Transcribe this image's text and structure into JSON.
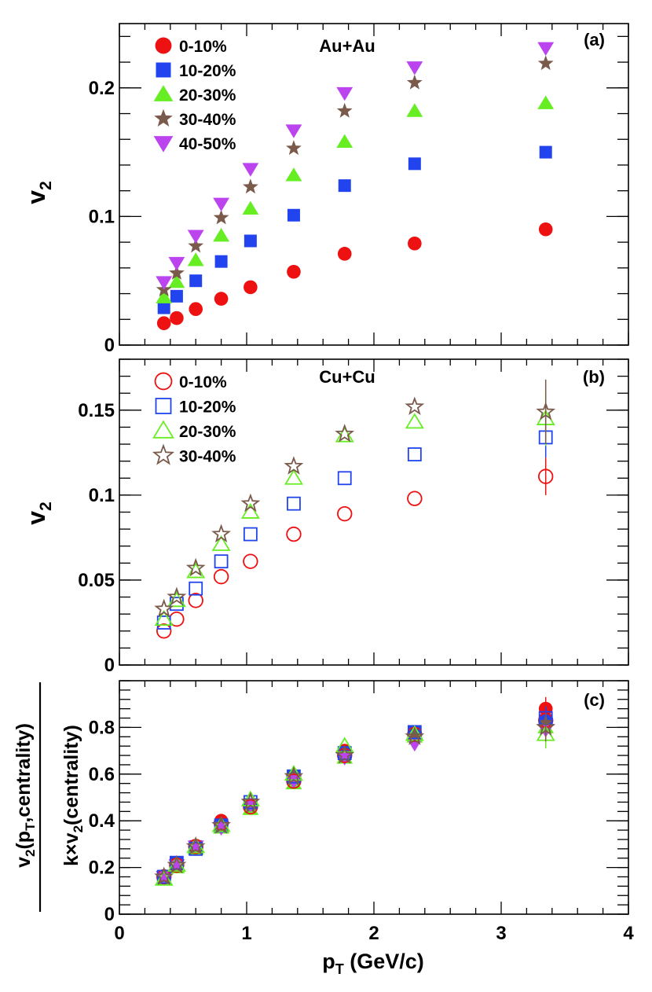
{
  "chart_data": [
    {
      "type": "scatter",
      "panel_tag": "(a)",
      "system": "Au+Au",
      "ylabel": "v2",
      "ylim": [
        0,
        0.25
      ],
      "yticks": [
        0,
        0.1,
        0.2
      ],
      "yticklabels": [
        "0",
        "0.1",
        "0.2"
      ],
      "xlim": [
        0,
        4
      ],
      "legend_position": "top-left",
      "series": [
        {
          "name": "0-10%",
          "marker": "circle",
          "filled": true,
          "color": "#ee1111",
          "x": [
            0.35,
            0.45,
            0.6,
            0.8,
            1.03,
            1.37,
            1.77,
            2.32,
            3.35
          ],
          "y": [
            0.017,
            0.021,
            0.028,
            0.036,
            0.045,
            0.057,
            0.071,
            0.079,
            0.09
          ]
        },
        {
          "name": "10-20%",
          "marker": "square",
          "filled": true,
          "color": "#2244ee",
          "x": [
            0.35,
            0.45,
            0.6,
            0.8,
            1.03,
            1.37,
            1.77,
            2.32,
            3.35
          ],
          "y": [
            0.029,
            0.038,
            0.05,
            0.065,
            0.081,
            0.101,
            0.124,
            0.141,
            0.15
          ]
        },
        {
          "name": "20-30%",
          "marker": "triangle-up",
          "filled": true,
          "color": "#66ee22",
          "x": [
            0.35,
            0.45,
            0.6,
            0.8,
            1.03,
            1.37,
            1.77,
            2.32,
            3.35
          ],
          "y": [
            0.037,
            0.049,
            0.066,
            0.085,
            0.106,
            0.132,
            0.158,
            0.182,
            0.188
          ]
        },
        {
          "name": "30-40%",
          "marker": "star",
          "filled": true,
          "color": "#7a5a4a",
          "x": [
            0.35,
            0.45,
            0.6,
            0.8,
            1.03,
            1.37,
            1.77,
            2.32,
            3.35
          ],
          "y": [
            0.043,
            0.056,
            0.077,
            0.099,
            0.123,
            0.153,
            0.182,
            0.204,
            0.219
          ]
        },
        {
          "name": "40-50%",
          "marker": "triangle-down",
          "filled": true,
          "color": "#bb44ee",
          "x": [
            0.35,
            0.45,
            0.6,
            0.8,
            1.03,
            1.37,
            1.77,
            2.32,
            3.35
          ],
          "y": [
            0.049,
            0.064,
            0.085,
            0.11,
            0.137,
            0.167,
            0.196,
            0.216,
            0.231
          ]
        }
      ]
    },
    {
      "type": "scatter",
      "panel_tag": "(b)",
      "system": "Cu+Cu",
      "ylabel": "v2",
      "ylim": [
        0,
        0.18
      ],
      "yticks": [
        0,
        0.05,
        0.1,
        0.15
      ],
      "yticklabels": [
        "0",
        "0.05",
        "0.1",
        "0.15"
      ],
      "xlim": [
        0,
        4
      ],
      "legend_position": "top-left",
      "series": [
        {
          "name": "0-10%",
          "marker": "circle",
          "filled": false,
          "color": "#ee1111",
          "x": [
            0.35,
            0.45,
            0.6,
            0.8,
            1.03,
            1.37,
            1.77,
            2.32,
            3.35
          ],
          "y": [
            0.02,
            0.027,
            0.038,
            0.052,
            0.061,
            0.077,
            0.089,
            0.098,
            0.111
          ],
          "err": [
            0,
            0,
            0,
            0,
            0,
            0,
            0,
            0,
            0.011
          ]
        },
        {
          "name": "10-20%",
          "marker": "square",
          "filled": false,
          "color": "#2244ee",
          "x": [
            0.35,
            0.45,
            0.6,
            0.8,
            1.03,
            1.37,
            1.77,
            2.32,
            3.35
          ],
          "y": [
            0.025,
            0.036,
            0.045,
            0.061,
            0.077,
            0.095,
            0.11,
            0.124,
            0.134
          ],
          "err": [
            0,
            0,
            0,
            0,
            0,
            0,
            0,
            0,
            0.012
          ]
        },
        {
          "name": "20-30%",
          "marker": "triangle-up",
          "filled": false,
          "color": "#66ee22",
          "x": [
            0.35,
            0.45,
            0.6,
            0.8,
            1.03,
            1.37,
            1.77,
            2.32,
            3.35
          ],
          "y": [
            0.027,
            0.038,
            0.055,
            0.071,
            0.09,
            0.11,
            0.135,
            0.143,
            0.145
          ],
          "err": [
            0,
            0,
            0,
            0,
            0,
            0,
            0,
            0,
            0.016
          ]
        },
        {
          "name": "30-40%",
          "marker": "star",
          "filled": false,
          "color": "#7a5a4a",
          "x": [
            0.35,
            0.45,
            0.6,
            0.8,
            1.03,
            1.37,
            1.77,
            2.32,
            3.35
          ],
          "y": [
            0.033,
            0.04,
            0.057,
            0.077,
            0.095,
            0.117,
            0.136,
            0.152,
            0.149
          ],
          "err": [
            0,
            0,
            0,
            0,
            0,
            0,
            0,
            0,
            0.019
          ]
        }
      ]
    },
    {
      "type": "scatter",
      "panel_tag": "(c)",
      "ylabel_num": "v2(pT,centrality)",
      "ylabel_den": "k×v2(centrality)",
      "ylim": [
        0,
        1.0
      ],
      "yticks": [
        0,
        0.2,
        0.4,
        0.6,
        0.8
      ],
      "yticklabels": [
        "0",
        "0.2",
        "0.4",
        "0.6",
        "0.8"
      ],
      "xlim": [
        0,
        4
      ],
      "xticks": [
        0,
        1,
        2,
        3,
        4
      ],
      "xticklabels": [
        "0",
        "1",
        "2",
        "3",
        "4"
      ],
      "xlabel": "pT (GeV/c)",
      "series": [
        {
          "name": "Au+Au 0-10%",
          "marker": "circle",
          "filled": true,
          "color": "#ee1111",
          "x": [
            0.35,
            0.45,
            0.6,
            0.8,
            1.03,
            1.37,
            1.77,
            2.32,
            3.35
          ],
          "y": [
            0.16,
            0.21,
            0.28,
            0.4,
            0.46,
            0.57,
            0.7,
            0.77,
            0.88
          ],
          "err": [
            0,
            0,
            0,
            0,
            0,
            0,
            0,
            0,
            0.05
          ]
        },
        {
          "name": "Au+Au 10-20%",
          "marker": "square",
          "filled": true,
          "color": "#2244ee",
          "x": [
            0.35,
            0.45,
            0.6,
            0.8,
            1.03,
            1.37,
            1.77,
            2.32,
            3.35
          ],
          "y": [
            0.16,
            0.22,
            0.29,
            0.38,
            0.47,
            0.59,
            0.69,
            0.78,
            0.83
          ],
          "err": [
            0,
            0,
            0,
            0,
            0,
            0,
            0,
            0,
            0.03
          ]
        },
        {
          "name": "Au+Au 20-30%",
          "marker": "triangle-up",
          "filled": true,
          "color": "#66ee22",
          "x": [
            0.35,
            0.45,
            0.6,
            0.8,
            1.03,
            1.37,
            1.77,
            2.32,
            3.35
          ],
          "y": [
            0.15,
            0.2,
            0.28,
            0.37,
            0.45,
            0.56,
            0.67,
            0.76,
            0.8
          ],
          "err": [
            0,
            0,
            0,
            0,
            0,
            0,
            0,
            0,
            0.03
          ]
        },
        {
          "name": "Au+Au 30-40%",
          "marker": "star",
          "filled": true,
          "color": "#7a5a4a",
          "x": [
            0.35,
            0.45,
            0.6,
            0.8,
            1.03,
            1.37,
            1.77,
            2.32,
            3.35
          ],
          "y": [
            0.16,
            0.21,
            0.29,
            0.38,
            0.46,
            0.58,
            0.68,
            0.76,
            0.82
          ],
          "err": [
            0,
            0,
            0,
            0,
            0,
            0,
            0,
            0,
            0.03
          ]
        },
        {
          "name": "Au+Au 40-50%",
          "marker": "triangle-down",
          "filled": true,
          "color": "#bb44ee",
          "x": [
            0.35,
            0.45,
            0.6,
            0.8,
            1.03,
            1.37,
            1.77,
            2.32,
            3.35
          ],
          "y": [
            0.16,
            0.21,
            0.29,
            0.37,
            0.47,
            0.57,
            0.67,
            0.73,
            0.79
          ],
          "err": [
            0,
            0,
            0,
            0,
            0,
            0,
            0,
            0,
            0.03
          ]
        },
        {
          "name": "Cu+Cu 0-10%",
          "marker": "circle",
          "filled": false,
          "color": "#ee1111",
          "x": [
            0.35,
            0.45,
            0.6,
            0.8,
            1.03,
            1.37,
            1.77,
            2.32,
            3.35
          ],
          "y": [
            0.16,
            0.21,
            0.29,
            0.39,
            0.46,
            0.57,
            0.68,
            0.77,
            0.83
          ],
          "err": [
            0,
            0,
            0,
            0,
            0,
            0,
            0,
            0,
            0.04
          ]
        },
        {
          "name": "Cu+Cu 10-20%",
          "marker": "square",
          "filled": false,
          "color": "#2244ee",
          "x": [
            0.35,
            0.45,
            0.6,
            0.8,
            1.03,
            1.37,
            1.77,
            2.32,
            3.35
          ],
          "y": [
            0.16,
            0.22,
            0.28,
            0.38,
            0.48,
            0.59,
            0.69,
            0.78,
            0.84
          ],
          "err": [
            0,
            0,
            0,
            0,
            0,
            0,
            0,
            0,
            0.05
          ]
        },
        {
          "name": "Cu+Cu 20-30%",
          "marker": "triangle-up",
          "filled": false,
          "color": "#66ee22",
          "x": [
            0.35,
            0.45,
            0.6,
            0.8,
            1.03,
            1.37,
            1.77,
            2.32,
            3.35
          ],
          "y": [
            0.15,
            0.21,
            0.29,
            0.38,
            0.49,
            0.6,
            0.72,
            0.77,
            0.77
          ],
          "err": [
            0,
            0,
            0,
            0,
            0,
            0,
            0,
            0,
            0.06
          ]
        },
        {
          "name": "Cu+Cu 30-40%",
          "marker": "star",
          "filled": false,
          "color": "#7a5a4a",
          "x": [
            0.35,
            0.45,
            0.6,
            0.8,
            1.03,
            1.37,
            1.77,
            2.32,
            3.35
          ],
          "y": [
            0.16,
            0.21,
            0.29,
            0.38,
            0.48,
            0.59,
            0.68,
            0.76,
            0.8
          ],
          "err": [
            0,
            0,
            0,
            0,
            0,
            0,
            0,
            0,
            0.06
          ]
        }
      ]
    }
  ]
}
